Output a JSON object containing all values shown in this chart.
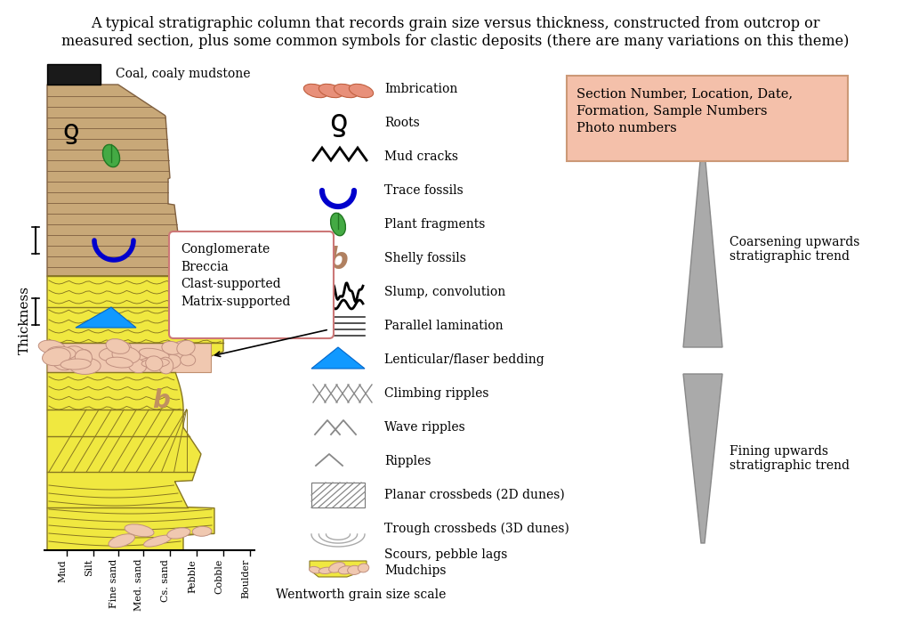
{
  "title_line1": "A typical stratigraphic column that records grain size versus thickness, constructed from outcrop or",
  "title_line2": "measured section, plus some common symbols for clastic deposits (there are many variations on this theme)",
  "ylabel": "Thickness",
  "xlabel_labels": [
    "Mud",
    "Silt",
    "Fine sand",
    "Med. sand",
    "Cs. sand",
    "Pebble",
    "Cobble",
    "Boulder"
  ],
  "info_box_text": "Section Number, Location, Date,\nFormation, Sample Numbers\nPhoto numbers",
  "info_box_color": "#f4c0aa",
  "conglomerate_box_text": "Conglomerate\nBreccia\nClast-supported\nMatrix-supported",
  "conglomerate_box_color": "#ffffff",
  "conglomerate_box_edge_color": "#cc7777",
  "symbol_labels": [
    "Imbrication",
    "Roots",
    "Mud cracks",
    "Trace fossils",
    "Plant fragments",
    "Shelly fossils",
    "Slump, convolution",
    "Parallel lamination",
    "Lenticular/flaser bedding",
    "Climbing ripples",
    "Wave ripples",
    "Ripples",
    "Planar crossbeds (2D dunes)",
    "Trough crossbeds (3D dunes)",
    "Scours, pebble lags\nMudchips"
  ],
  "coarsening_text": "Coarsening upwards\nstratigraphic trend",
  "fining_text": "Fining upwards\nstratigraphic trend",
  "wentworth_text": "Wentworth grain size scale",
  "background_color": "#ffffff",
  "coal_color": "#1a1a1a",
  "sandy_mud_color": "#c8a878",
  "sand_yellow": "#f0e840",
  "pebble_fill": "#f0c8b0",
  "pebble_edge": "#c09080"
}
